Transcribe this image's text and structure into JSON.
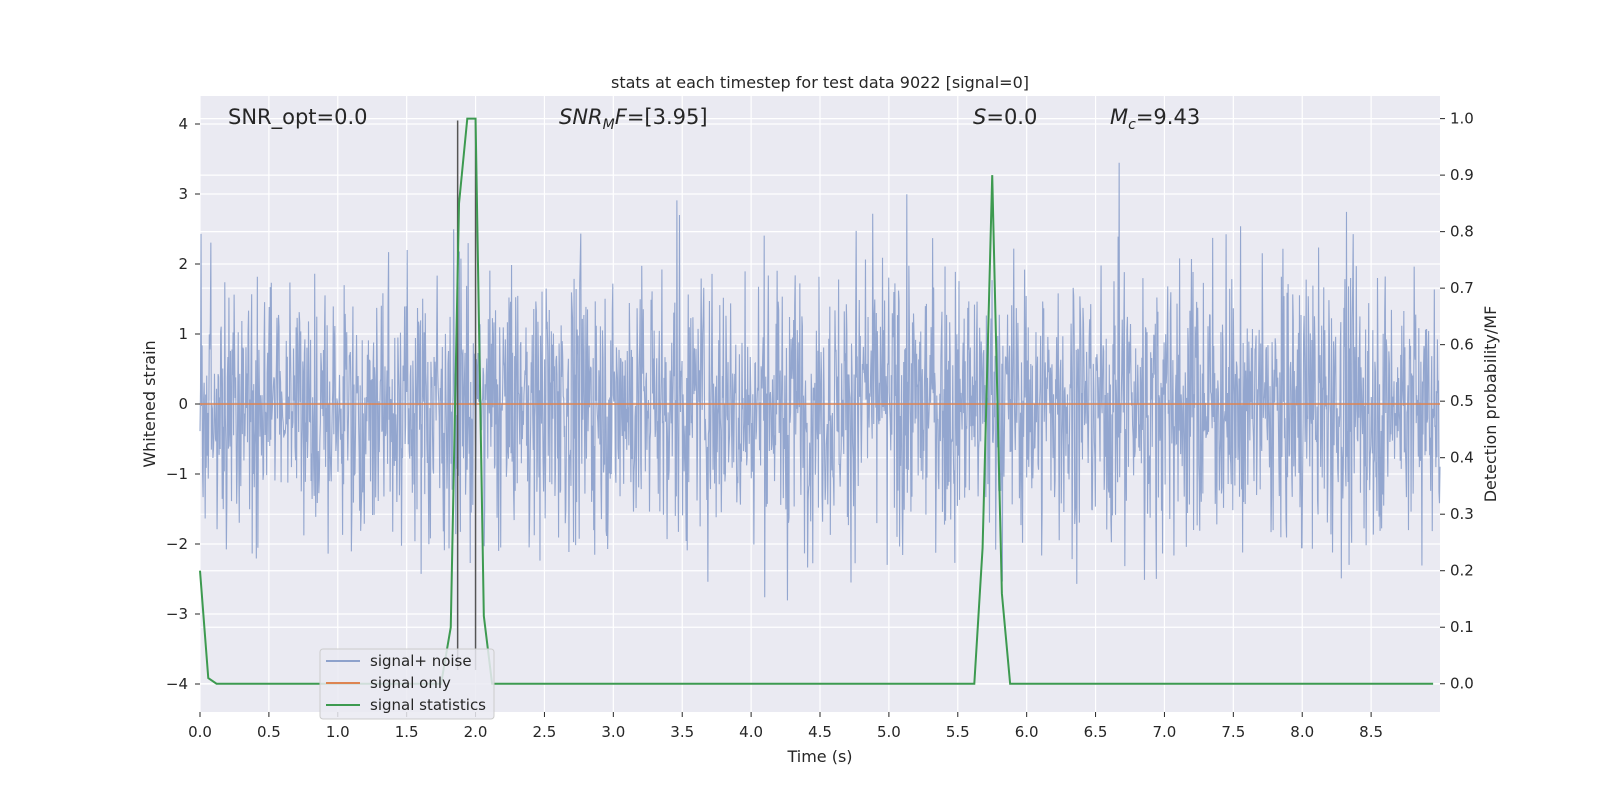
{
  "chart_data": {
    "type": "line",
    "title": "stats at each timestep for test data 9022 [signal=0]",
    "xlabel": "Time (s)",
    "ylabel_left": "Whitened strain",
    "ylabel_right": "Detection probability/MF",
    "xlim": [
      0.0,
      9.0
    ],
    "ylim_left": [
      -4.4,
      4.4
    ],
    "ylim_right": [
      -0.05,
      1.04
    ],
    "x_ticks": [
      "0.0",
      "0.5",
      "1.0",
      "1.5",
      "2.0",
      "2.5",
      "3.0",
      "3.5",
      "4.0",
      "4.5",
      "5.0",
      "5.5",
      "6.0",
      "6.5",
      "7.0",
      "7.5",
      "8.0",
      "8.5"
    ],
    "y_ticks_left": [
      "−4",
      "−3",
      "−2",
      "−1",
      "0",
      "1",
      "2",
      "3",
      "4"
    ],
    "y_ticks_right": [
      "0.0",
      "0.1",
      "0.2",
      "0.3",
      "0.4",
      "0.5",
      "0.6",
      "0.7",
      "0.8",
      "0.9",
      "1.0"
    ],
    "grid": true,
    "legend_placement": "lower-left",
    "annotations": {
      "snr_opt": "SNR_opt=0.0",
      "snr_mf_base": "SNR",
      "snr_mf_sub": "M",
      "snr_mf_rest": "F=[3.95]",
      "s_label": "S",
      "s_rest": "=0.0",
      "mc_base": "M",
      "mc_sub": "c",
      "mc_rest": "=9.43"
    },
    "vertical_markers_x": [
      1.87,
      2.0
    ],
    "series": [
      {
        "name": "signal+ noise",
        "color": "#8ea2cc",
        "description_stats": {
          "typical_abs": 1.6,
          "max": 4.0,
          "min": -3.8
        }
      },
      {
        "name": "signal only",
        "color": "#dd8452",
        "x": [
          0.0,
          9.0
        ],
        "y": [
          0.0,
          0.0
        ]
      },
      {
        "name": "signal statistics",
        "color": "#3d9a50",
        "axis": "right",
        "x": [
          0.0,
          0.06,
          0.12,
          1.5,
          1.75,
          1.82,
          1.88,
          1.94,
          2.0,
          2.06,
          2.12,
          2.2,
          5.5,
          5.62,
          5.68,
          5.75,
          5.82,
          5.88,
          5.95,
          8.95
        ],
        "y": [
          0.2,
          0.01,
          0.0,
          0.0,
          0.0,
          0.1,
          0.85,
          1.0,
          1.0,
          0.12,
          0.0,
          0.0,
          0.0,
          0.0,
          0.24,
          0.9,
          0.16,
          0.0,
          0.0,
          0.0
        ]
      }
    ]
  }
}
